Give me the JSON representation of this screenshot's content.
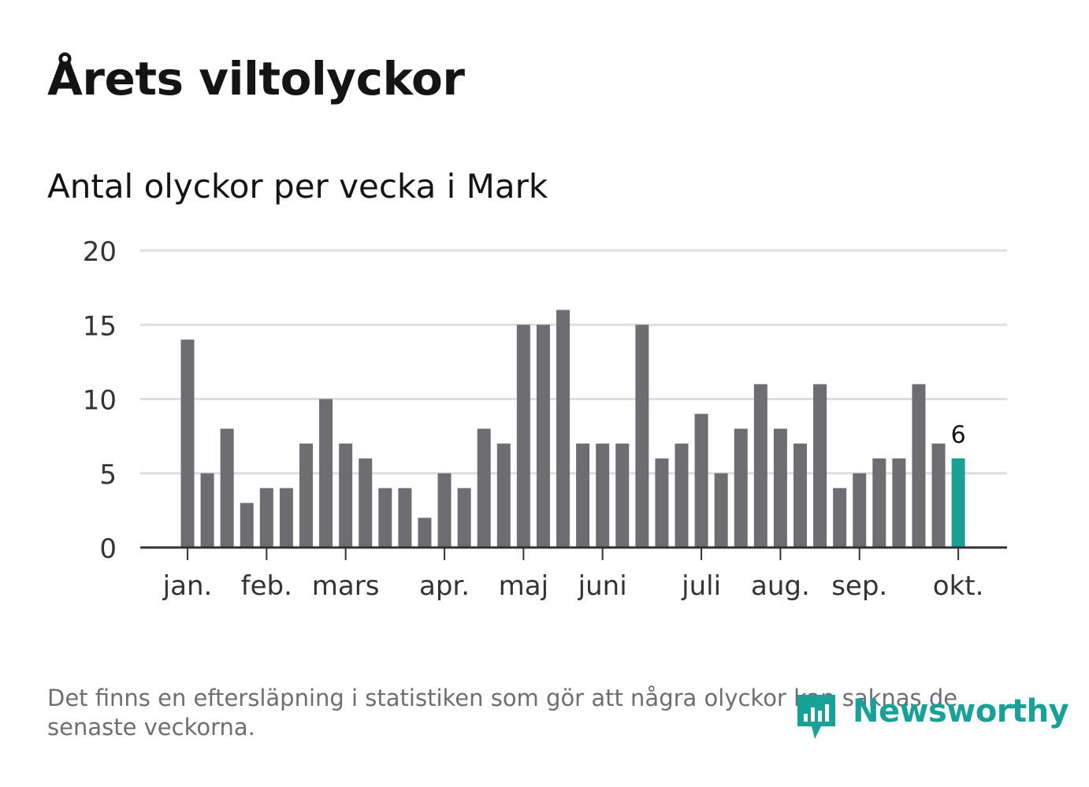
{
  "header": {
    "title": "Årets viltolyckor",
    "subtitle": "Antal olyckor per vecka i Mark"
  },
  "footer": {
    "note": "Det finns en eftersläpning i statistiken som gör att några olyckor kan saknas de senaste veckorna.",
    "logo_text": "Newsworthy"
  },
  "colors": {
    "bar": "#6e6d72",
    "highlight": "#19a097",
    "grid": "#dddddd",
    "axis": "#333333"
  },
  "chart_data": {
    "type": "bar",
    "title": "Antal olyckor per vecka i Mark",
    "xlabel": "",
    "ylabel": "",
    "ylim": [
      0,
      20
    ],
    "yticks": [
      0,
      5,
      10,
      15,
      20
    ],
    "grid": true,
    "values": [
      14,
      5,
      8,
      3,
      4,
      4,
      7,
      10,
      7,
      6,
      4,
      4,
      2,
      5,
      4,
      8,
      7,
      15,
      15,
      16,
      7,
      7,
      7,
      15,
      6,
      7,
      9,
      5,
      8,
      11,
      8,
      7,
      11,
      4,
      5,
      6,
      6,
      11,
      7,
      6
    ],
    "highlight_index": 39,
    "highlight_label": "6",
    "month_labels": [
      {
        "label": "jan.",
        "week_index": 0
      },
      {
        "label": "feb.",
        "week_index": 4
      },
      {
        "label": "mars",
        "week_index": 8
      },
      {
        "label": "apr.",
        "week_index": 13
      },
      {
        "label": "maj",
        "week_index": 17
      },
      {
        "label": "juni",
        "week_index": 21
      },
      {
        "label": "juli",
        "week_index": 26
      },
      {
        "label": "aug.",
        "week_index": 30
      },
      {
        "label": "sep.",
        "week_index": 34
      },
      {
        "label": "okt.",
        "week_index": 39
      }
    ]
  }
}
